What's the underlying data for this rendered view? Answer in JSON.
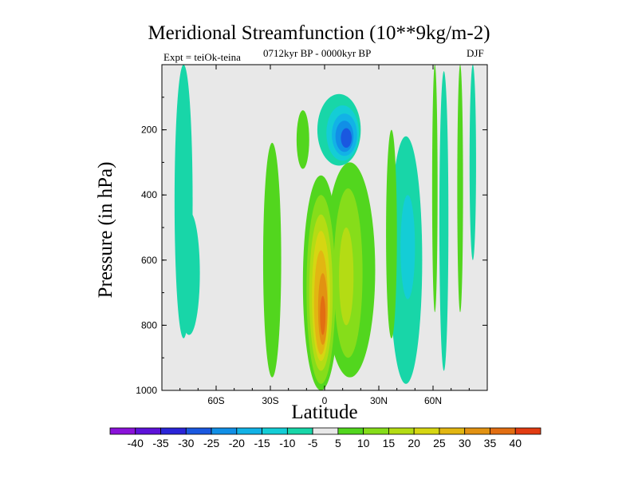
{
  "chart_data": {
    "type": "heatmap",
    "title": "Meridional Streamfunction (10**9kg/m-2)",
    "left_label": "Expt = teiOk-teina",
    "center_label": "0712kyr BP - 0000kyr BP",
    "right_label": "DJF",
    "xlabel": "Latitude",
    "ylabel": "Pressure (in hPa)",
    "xlim": [
      -90,
      90
    ],
    "ylim": [
      1000,
      0
    ],
    "x_ticks": [
      {
        "value": -60,
        "label": "60S"
      },
      {
        "value": -30,
        "label": "30S"
      },
      {
        "value": 0,
        "label": "0"
      },
      {
        "value": 30,
        "label": "30N"
      },
      {
        "value": 60,
        "label": "60N"
      }
    ],
    "y_ticks": [
      {
        "value": 200,
        "label": "200"
      },
      {
        "value": 400,
        "label": "400"
      },
      {
        "value": 600,
        "label": "600"
      },
      {
        "value": 800,
        "label": "800"
      },
      {
        "value": 1000,
        "label": "1000"
      }
    ],
    "contour_levels": [
      -40,
      -35,
      -30,
      -25,
      -20,
      -15,
      -10,
      -5,
      5,
      10,
      15,
      20,
      25,
      30,
      35,
      40
    ],
    "colorbar_labels": [
      "-40",
      "-35",
      "-30",
      "-25",
      "-20",
      "-15",
      "-10",
      "-5",
      "5",
      "10",
      "15",
      "20",
      "25",
      "30",
      "35",
      "40"
    ],
    "colors": [
      "#8a12d9",
      "#5d12d9",
      "#2a24d8",
      "#1a58e0",
      "#118fe6",
      "#12b2e6",
      "#14cdd6",
      "#18d6a8",
      "#e8e8e8",
      "#52d61e",
      "#86dd1a",
      "#b4dc14",
      "#d6d612",
      "#e2b612",
      "#e29212",
      "#e26e12",
      "#e23c12"
    ],
    "features": [
      {
        "name": "southern-polar-cell",
        "level": -5,
        "x_center": -78,
        "p_center": 420,
        "x_half_width": 5,
        "p_half_depth": 420
      },
      {
        "name": "southern-polar-cell-lower",
        "level": -5,
        "x_center": -75,
        "p_center": 640,
        "x_half_width": 6,
        "p_half_depth": 190
      },
      {
        "name": "southern-subtropical-band",
        "level": 5,
        "x_center": -29,
        "p_center": 600,
        "x_half_width": 5,
        "p_half_depth": 360
      },
      {
        "name": "southern-midlevel-band",
        "level": 5,
        "x_center": -12,
        "p_center": 230,
        "x_half_width": 3.5,
        "p_half_depth": 90
      },
      {
        "name": "equatorial-positive-cell",
        "level": 5,
        "x_center": -2,
        "p_center": 670,
        "x_half_width": 10,
        "p_half_depth": 330
      },
      {
        "name": "equatorial-positive-cell",
        "level": 10,
        "x_center": -2,
        "p_center": 690,
        "x_half_width": 8,
        "p_half_depth": 290
      },
      {
        "name": "equatorial-positive-cell",
        "level": 15,
        "x_center": -2,
        "p_center": 700,
        "x_half_width": 6.5,
        "p_half_depth": 240
      },
      {
        "name": "equatorial-positive-cell",
        "level": 20,
        "x_center": -2,
        "p_center": 710,
        "x_half_width": 5,
        "p_half_depth": 200
      },
      {
        "name": "equatorial-positive-cell",
        "level": 25,
        "x_center": -2,
        "p_center": 730,
        "x_half_width": 3.8,
        "p_half_depth": 160
      },
      {
        "name": "equatorial-positive-cell",
        "level": 30,
        "x_center": -1,
        "p_center": 750,
        "x_half_width": 2.6,
        "p_half_depth": 110
      },
      {
        "name": "equatorial-positive-cell",
        "level": 35,
        "x_center": -1,
        "p_center": 770,
        "x_half_width": 1.5,
        "p_half_depth": 60
      },
      {
        "name": "northern-positive-cell",
        "level": 5,
        "x_center": 14,
        "p_center": 630,
        "x_half_width": 14,
        "p_half_depth": 330
      },
      {
        "name": "northern-positive-cell",
        "level": 10,
        "x_center": 13,
        "p_center": 640,
        "x_half_width": 8,
        "p_half_depth": 260
      },
      {
        "name": "northern-positive-cell",
        "level": 15,
        "x_center": 12,
        "p_center": 650,
        "x_half_width": 4,
        "p_half_depth": 150
      },
      {
        "name": "upper-negative-cell",
        "level": -5,
        "x_center": 8,
        "p_center": 200,
        "x_half_width": 12,
        "p_half_depth": 110
      },
      {
        "name": "upper-negative-cell",
        "level": -10,
        "x_center": 10,
        "p_center": 210,
        "x_half_width": 9,
        "p_half_depth": 85
      },
      {
        "name": "upper-negative-cell",
        "level": -15,
        "x_center": 11,
        "p_center": 215,
        "x_half_width": 7,
        "p_half_depth": 65
      },
      {
        "name": "upper-negative-cell",
        "level": -20,
        "x_center": 11,
        "p_center": 220,
        "x_half_width": 5,
        "p_half_depth": 48
      },
      {
        "name": "upper-negative-cell",
        "level": -25,
        "x_center": 12,
        "p_center": 225,
        "x_half_width": 3,
        "p_half_depth": 30
      },
      {
        "name": "northern-negative-cell",
        "level": -5,
        "x_center": 45,
        "p_center": 600,
        "x_half_width": 9,
        "p_half_depth": 380
      },
      {
        "name": "northern-negative-cell",
        "level": -10,
        "x_center": 46,
        "p_center": 560,
        "x_half_width": 4,
        "p_half_depth": 160
      },
      {
        "name": "northern-positive-band",
        "level": 5,
        "x_center": 37,
        "p_center": 520,
        "x_half_width": 3,
        "p_half_depth": 320
      },
      {
        "name": "northern-polar-streak",
        "level": -5,
        "x_center": 66,
        "p_center": 480,
        "x_half_width": 2.5,
        "p_half_depth": 460
      },
      {
        "name": "northern-polar-streak",
        "level": 5,
        "x_center": 61,
        "p_center": 380,
        "x_half_width": 1.5,
        "p_half_depth": 380
      },
      {
        "name": "northern-polar-streak",
        "level": 5,
        "x_center": 75,
        "p_center": 380,
        "x_half_width": 1.6,
        "p_half_depth": 380
      },
      {
        "name": "northern-polar-streak",
        "level": -5,
        "x_center": 82,
        "p_center": 300,
        "x_half_width": 1.8,
        "p_half_depth": 300
      }
    ]
  }
}
